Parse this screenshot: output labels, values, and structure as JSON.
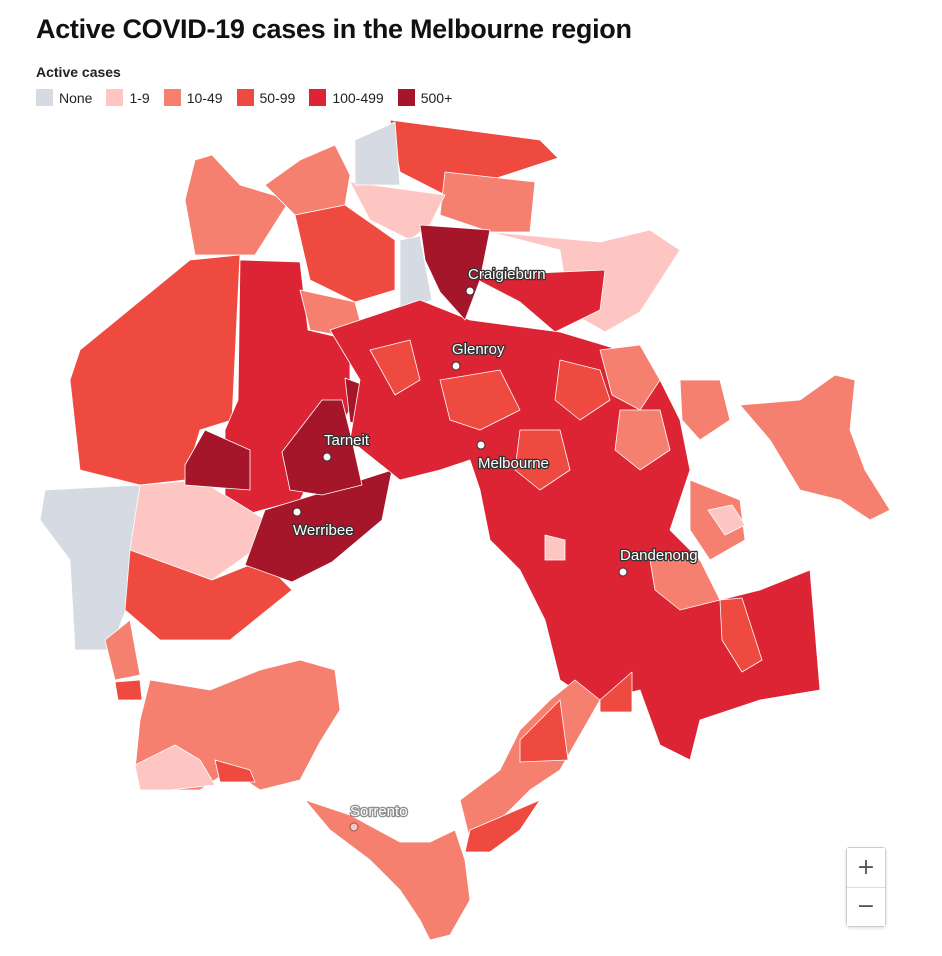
{
  "title": "Active COVID-19 cases in the Melbourne region",
  "legend": {
    "title": "Active cases",
    "items": [
      {
        "label": "None",
        "color": "#d6dbe3"
      },
      {
        "label": "1-9",
        "color": "#fdc6c3"
      },
      {
        "label": "10-49",
        "color": "#f6806f"
      },
      {
        "label": "50-99",
        "color": "#ee4a3f"
      },
      {
        "label": "100-499",
        "color": "#dc2434"
      },
      {
        "label": "500+",
        "color": "#a5162b"
      }
    ]
  },
  "places": [
    "Craigieburn",
    "Glenroy",
    "Tarneit",
    "Melbourne",
    "Werribee",
    "Dandenong",
    "Sorrento"
  ],
  "zoom": {
    "in": "+",
    "out": "−"
  }
}
